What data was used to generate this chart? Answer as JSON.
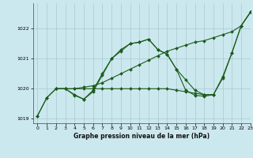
{
  "title": "Graphe pression niveau de la mer (hPa)",
  "bg_color": "#cce8ef",
  "grid_color": "#aac8d0",
  "line_color": "#1a5c1a",
  "marker_color": "#1a5c1a",
  "xlim": [
    -0.5,
    23
  ],
  "ylim": [
    1018.85,
    1022.85
  ],
  "yticks": [
    1019,
    1020,
    1021,
    1022
  ],
  "xticks": [
    0,
    1,
    2,
    3,
    4,
    5,
    6,
    7,
    8,
    9,
    10,
    11,
    12,
    13,
    14,
    15,
    16,
    17,
    18,
    19,
    20,
    21,
    22,
    23
  ],
  "series": [
    {
      "x": [
        0,
        1,
        2,
        3,
        4,
        5,
        6,
        7,
        8,
        9,
        10,
        11,
        12,
        13,
        14,
        15,
        16,
        17,
        18,
        19,
        20,
        21,
        22,
        23
      ],
      "y": [
        1019.1,
        1019.7,
        1020.0,
        1020.0,
        1019.8,
        1019.65,
        1019.9,
        1020.45,
        1021.0,
        1021.25,
        1021.5,
        1021.55,
        1021.65,
        1021.3,
        1021.15,
        1020.65,
        1020.3,
        1019.95,
        1019.8,
        1019.8,
        1020.35,
        1021.2,
        1022.1,
        1022.55
      ]
    },
    {
      "x": [
        2,
        3,
        4,
        5,
        6,
        7,
        8,
        9,
        10,
        11,
        12,
        13,
        14,
        15,
        16,
        17,
        18,
        19,
        20,
        21,
        22,
        23
      ],
      "y": [
        1020.0,
        1020.0,
        1020.0,
        1020.05,
        1020.1,
        1020.2,
        1020.35,
        1020.5,
        1020.65,
        1020.8,
        1020.95,
        1021.1,
        1021.25,
        1021.35,
        1021.45,
        1021.55,
        1021.6,
        1021.7,
        1021.8,
        1021.9,
        1022.1,
        1022.55
      ]
    },
    {
      "x": [
        0,
        1,
        2,
        3,
        4,
        5,
        6,
        7,
        8,
        9,
        10,
        11,
        12,
        13,
        14,
        15,
        16,
        17,
        18,
        19
      ],
      "y": [
        1019.1,
        1019.7,
        1020.0,
        1020.0,
        1020.0,
        1020.0,
        1020.0,
        1020.0,
        1020.0,
        1020.0,
        1020.0,
        1020.0,
        1020.0,
        1020.0,
        1020.0,
        1019.95,
        1019.9,
        1019.85,
        1019.8,
        1019.8
      ]
    },
    {
      "x": [
        2,
        3,
        4,
        5,
        6,
        7,
        8,
        9,
        10,
        11,
        12,
        13,
        14,
        15,
        16,
        17,
        18,
        19,
        20,
        21,
        22,
        23
      ],
      "y": [
        1020.0,
        1020.0,
        1019.78,
        1019.65,
        1019.95,
        1020.5,
        1021.0,
        1021.3,
        1021.5,
        1021.55,
        1021.65,
        1021.3,
        1021.15,
        1020.65,
        1019.95,
        1019.78,
        1019.75,
        1019.8,
        1020.4,
        1021.2,
        1022.1,
        1022.55
      ]
    }
  ]
}
